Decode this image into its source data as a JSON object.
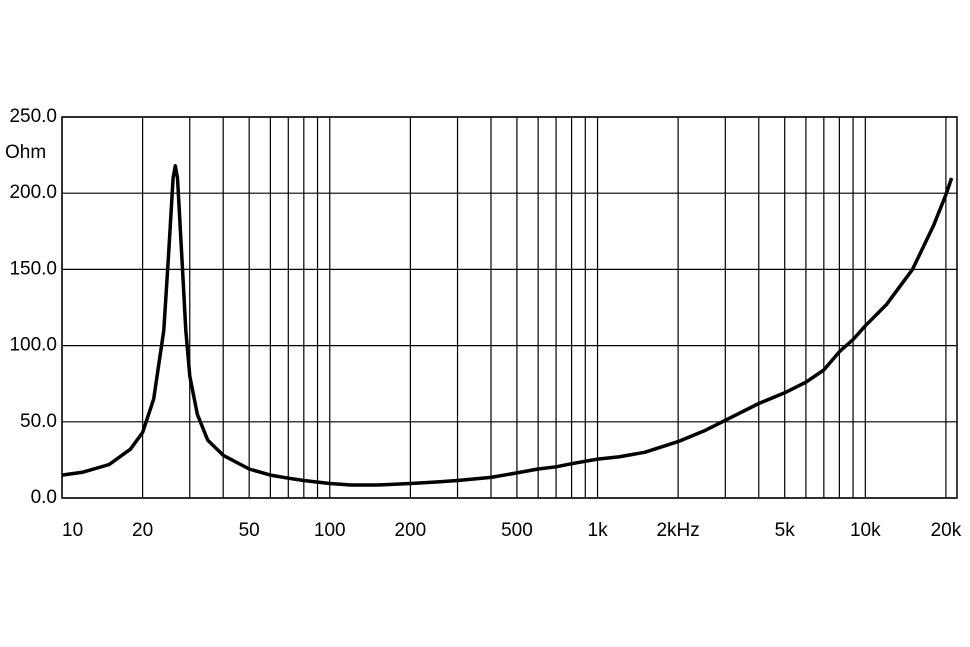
{
  "chart_data": {
    "type": "line",
    "y_label": "Ohm",
    "xscale": "log",
    "grid": true,
    "xlim": [
      10,
      22000
    ],
    "ylim": [
      0,
      250
    ],
    "xticks": [
      {
        "value": 10,
        "label": "10"
      },
      {
        "value": 20,
        "label": "20"
      },
      {
        "value": 50,
        "label": "50"
      },
      {
        "value": 100,
        "label": "100"
      },
      {
        "value": 200,
        "label": "200"
      },
      {
        "value": 500,
        "label": "500"
      },
      {
        "value": 1000,
        "label": "1k"
      },
      {
        "value": 2000,
        "label": "2kHz"
      },
      {
        "value": 5000,
        "label": "5k"
      },
      {
        "value": 10000,
        "label": "10k"
      },
      {
        "value": 20000,
        "label": "20k"
      }
    ],
    "xminorticks": [
      30,
      40,
      60,
      70,
      80,
      90,
      300,
      400,
      600,
      700,
      800,
      900,
      3000,
      4000,
      6000,
      7000,
      8000,
      9000
    ],
    "yticks": [
      {
        "value": 0,
        "label": "0.0"
      },
      {
        "value": 50,
        "label": "50.0"
      },
      {
        "value": 100,
        "label": "100.0"
      },
      {
        "value": 150,
        "label": "150.0"
      },
      {
        "value": 200,
        "label": "200.0"
      },
      {
        "value": 250,
        "label": "250.0"
      }
    ],
    "series": [
      {
        "color": "#000000",
        "x": [
          10,
          12,
          15,
          18,
          20,
          22,
          24,
          25,
          26,
          26.5,
          27,
          28,
          29,
          30,
          32,
          35,
          40,
          50,
          60,
          70,
          80,
          100,
          120,
          150,
          200,
          250,
          300,
          400,
          500,
          600,
          700,
          800,
          1000,
          1200,
          1500,
          2000,
          2500,
          3000,
          4000,
          5000,
          6000,
          7000,
          8000,
          9000,
          10000,
          12000,
          15000,
          18000,
          20000,
          21000
        ],
        "values": [
          15,
          17,
          22,
          32,
          43,
          65,
          110,
          160,
          210,
          218,
          210,
          160,
          110,
          80,
          55,
          38,
          28,
          19,
          15,
          13,
          11.5,
          9.5,
          8.5,
          8.5,
          9.5,
          10.5,
          11.5,
          13.5,
          16.5,
          19,
          20.5,
          22.5,
          25.5,
          27,
          30,
          37,
          44,
          51,
          62,
          69,
          76,
          84,
          96,
          104,
          113,
          127,
          150,
          179,
          199,
          210
        ]
      }
    ]
  }
}
